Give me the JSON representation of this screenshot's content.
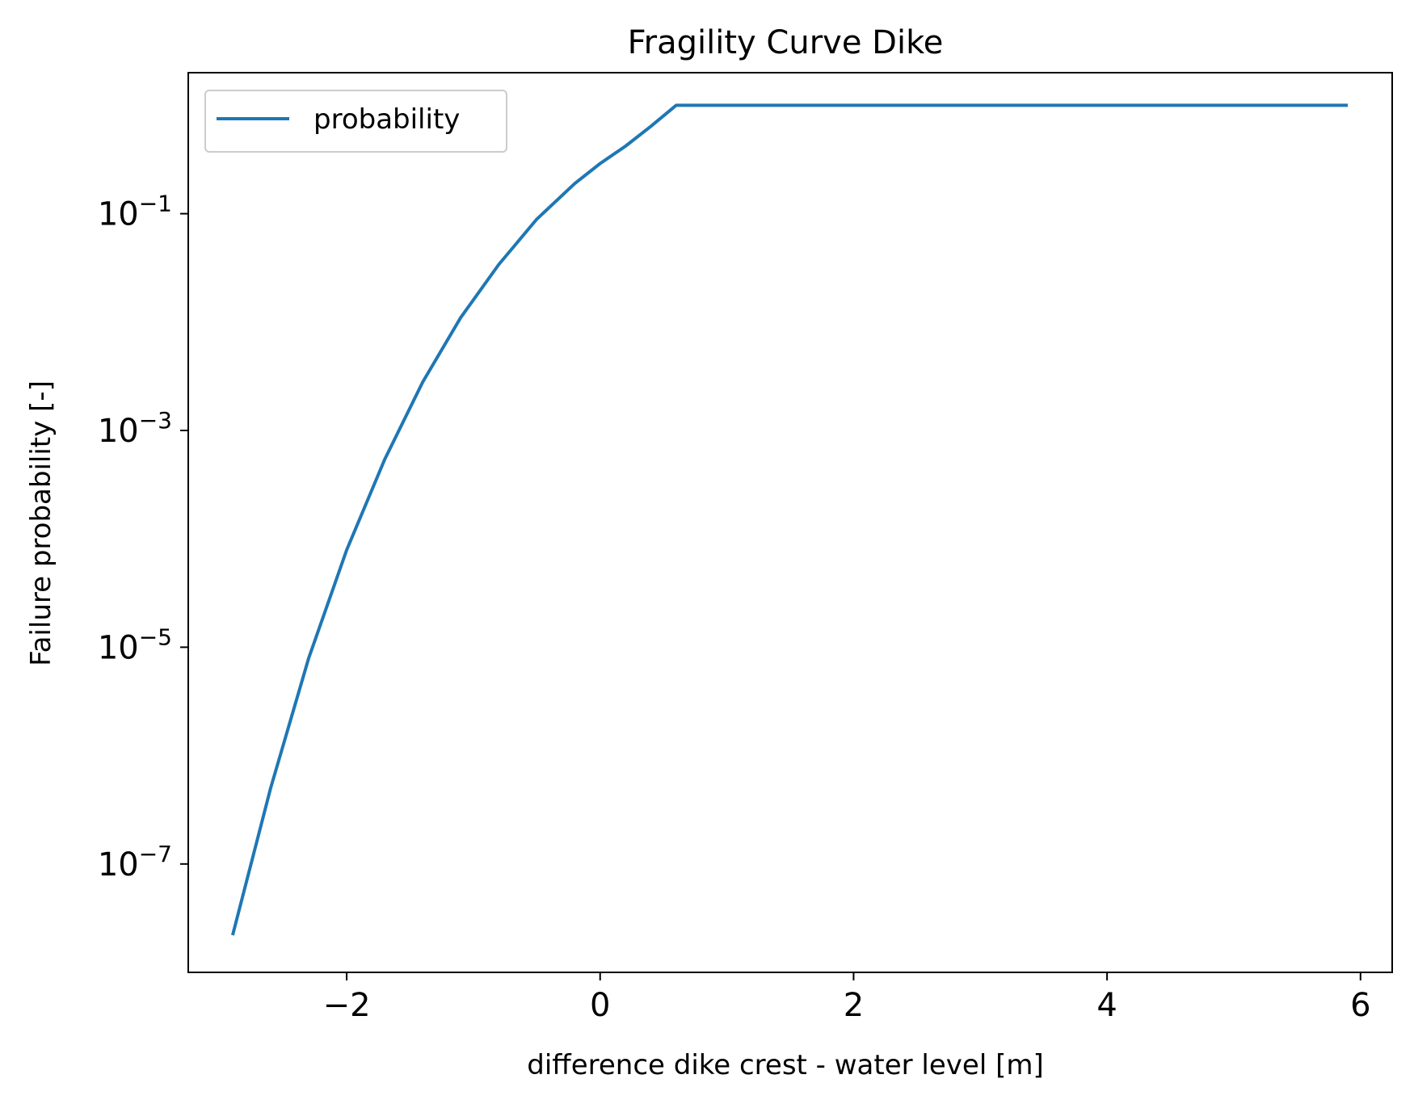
{
  "chart_data": {
    "type": "line",
    "title": "Fragility Curve Dike",
    "xlabel": "difference dike crest - water level [m]",
    "ylabel": "Failure probability [-]",
    "yscale": "log",
    "xlim": [
      -3.25,
      6.25
    ],
    "ylim": [
      1e-08,
      2.0
    ],
    "xticks": [
      -2,
      0,
      2,
      4,
      6
    ],
    "xtick_labels": [
      "−2",
      "0",
      "2",
      "4",
      "6"
    ],
    "yticks": [
      0.1,
      0.001,
      1e-05,
      1e-07
    ],
    "ytick_labels": [
      {
        "base": "10",
        "exp": "−1"
      },
      {
        "base": "10",
        "exp": "−3"
      },
      {
        "base": "10",
        "exp": "−5"
      },
      {
        "base": "10",
        "exp": "−7"
      }
    ],
    "legend": {
      "position": "upper left",
      "entries": [
        "probability"
      ]
    },
    "grid": false,
    "series": [
      {
        "name": "probability",
        "color": "#1f77b4",
        "x": [
          -2.9,
          -2.6,
          -2.3,
          -2.0,
          -1.7,
          -1.4,
          -1.1,
          -0.8,
          -0.5,
          -0.2,
          0.0,
          0.2,
          0.4,
          0.6,
          1.0,
          2.0,
          3.0,
          4.0,
          5.0,
          5.9
        ],
        "y": [
          2.2e-08,
          5e-07,
          7.9e-06,
          7.9e-05,
          0.00054,
          0.0028,
          0.011,
          0.034,
          0.089,
          0.19,
          0.29,
          0.42,
          0.64,
          1.0,
          1.0,
          1.0,
          1.0,
          1.0,
          1.0,
          1.0
        ]
      }
    ]
  }
}
